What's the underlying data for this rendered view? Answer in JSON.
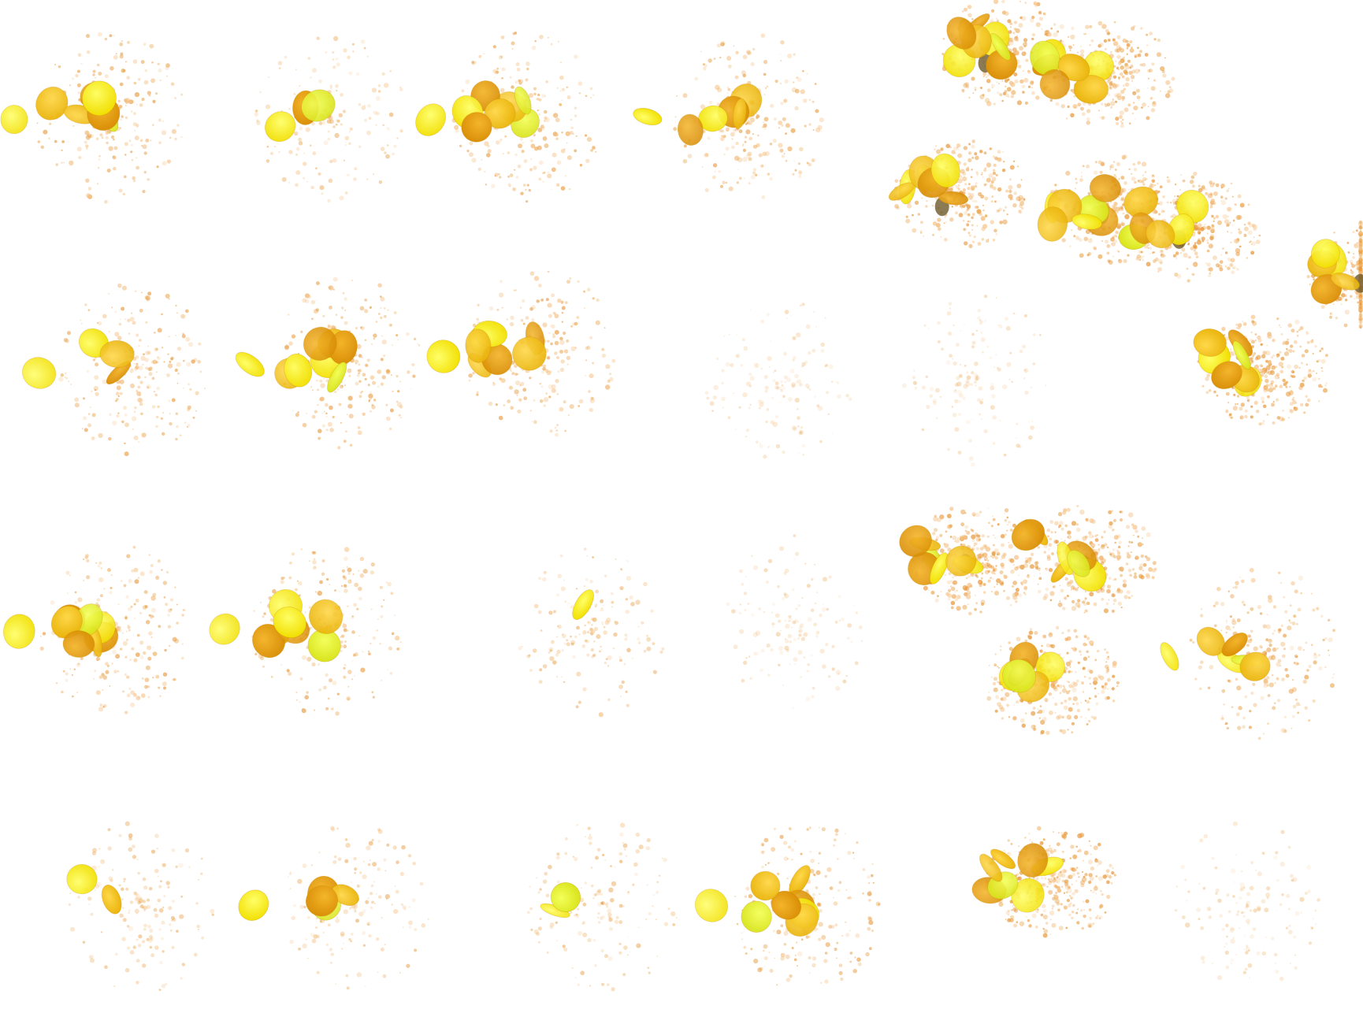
{
  "sheet": {
    "title": "",
    "background": "#ffffff",
    "colors": {
      "coin_bright": "#f7ea00",
      "coin_gold": "#f2c40c",
      "coin_amber": "#e6a20a",
      "coin_deep": "#d98e06",
      "coin_shade": "#6e5a2a",
      "particle": "#e89a3c",
      "particle_light": "#f6c48a"
    },
    "frames": [
      {
        "row": 1,
        "col": 1,
        "coins": 7,
        "sparkle": "medium"
      },
      {
        "row": 1,
        "col": 2,
        "coins": 3,
        "sparkle": "light"
      },
      {
        "row": 1,
        "col": 3,
        "coins": 8,
        "sparkle": "medium"
      },
      {
        "row": 1,
        "col": 4,
        "coins": 6,
        "sparkle": "medium"
      },
      {
        "row": 1,
        "col": 5,
        "coins": 8,
        "sparkle": "dense"
      },
      {
        "row": 1,
        "col": 6,
        "coins": 7,
        "sparkle": "dense"
      },
      {
        "row": 2,
        "col": 5,
        "coins": 7,
        "sparkle": "dense"
      },
      {
        "row": 2,
        "col": 6,
        "coins": 7,
        "sparkle": "dense"
      },
      {
        "row": 2,
        "col": 7,
        "coins": 6,
        "sparkle": "dense"
      },
      {
        "row": 2,
        "col": 8,
        "coins": 5,
        "sparkle": "dense"
      },
      {
        "row": 3,
        "col": 1,
        "coins": 4,
        "sparkle": "medium"
      },
      {
        "row": 3,
        "col": 2,
        "coins": 8,
        "sparkle": "medium"
      },
      {
        "row": 3,
        "col": 3,
        "coins": 8,
        "sparkle": "medium"
      },
      {
        "row": 3,
        "col": 4,
        "coins": 0,
        "sparkle": "faint"
      },
      {
        "row": 3,
        "col": 5,
        "coins": 0,
        "sparkle": "faint"
      },
      {
        "row": 3,
        "col": 6,
        "coins": 7,
        "sparkle": "dense"
      },
      {
        "row": 4,
        "col": 1,
        "coins": 8,
        "sparkle": "medium"
      },
      {
        "row": 4,
        "col": 2,
        "coins": 8,
        "sparkle": "medium"
      },
      {
        "row": 4,
        "col": 3,
        "coins": 1,
        "sparkle": "light"
      },
      {
        "row": 4,
        "col": 4,
        "coins": 0,
        "sparkle": "faint"
      },
      {
        "row": 4,
        "col": 5,
        "coins": 7,
        "sparkle": "dense"
      },
      {
        "row": 4,
        "col": 6,
        "coins": 7,
        "sparkle": "dense"
      },
      {
        "row": 4,
        "col": 7,
        "coins": 6,
        "sparkle": "dense"
      },
      {
        "row": 4,
        "col": 8,
        "coins": 6,
        "sparkle": "medium"
      },
      {
        "row": 5,
        "col": 1,
        "coins": 2,
        "sparkle": "light"
      },
      {
        "row": 5,
        "col": 2,
        "coins": 5,
        "sparkle": "light"
      },
      {
        "row": 5,
        "col": 3,
        "coins": 2,
        "sparkle": "light"
      },
      {
        "row": 5,
        "col": 4,
        "coins": 8,
        "sparkle": "medium"
      },
      {
        "row": 5,
        "col": 5,
        "coins": 7,
        "sparkle": "dense"
      },
      {
        "row": 5,
        "col": 6,
        "coins": 0,
        "sparkle": "faint"
      }
    ]
  }
}
